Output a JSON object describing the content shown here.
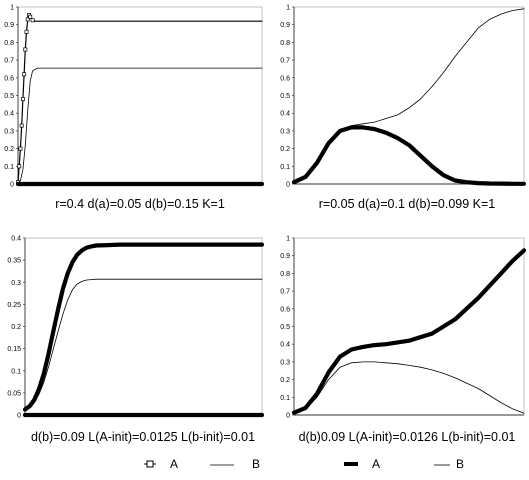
{
  "chart_data": [
    {
      "type": "line",
      "caption": "r=0.4  d(a)=0.05  d(b)=0.15  K=1",
      "xlim": [
        0,
        100
      ],
      "ylim": [
        0,
        1
      ],
      "yticks": [
        "0",
        "0.1",
        "0.2",
        "0.3",
        "0.4",
        "0.5",
        "0.6",
        "0.7",
        "0.8",
        "0.9",
        "1"
      ],
      "series": [
        {
          "style": "open-marker",
          "x": [
            0,
            0.5,
            1,
            1.5,
            2,
            2.5,
            3,
            3.5,
            4,
            4.5,
            5,
            6,
            7,
            8,
            10,
            20,
            40,
            60,
            80,
            100
          ],
          "y": [
            0.01,
            0.1,
            0.2,
            0.33,
            0.48,
            0.62,
            0.76,
            0.86,
            0.93,
            0.955,
            0.945,
            0.925,
            0.92,
            0.92,
            0.92,
            0.92,
            0.92,
            0.92,
            0.92,
            0.92
          ]
        },
        {
          "style": "thin",
          "x": [
            0,
            1,
            2,
            3,
            4,
            5,
            6,
            8,
            10,
            20,
            40,
            60,
            80,
            100
          ],
          "y": [
            0.0,
            0.02,
            0.08,
            0.22,
            0.42,
            0.58,
            0.64,
            0.655,
            0.655,
            0.655,
            0.655,
            0.655,
            0.655,
            0.655
          ]
        },
        {
          "style": "thick",
          "x": [
            0,
            5,
            100
          ],
          "y": [
            0.0,
            0.0,
            0.0
          ]
        }
      ]
    },
    {
      "type": "line",
      "caption": "r=0.05  d(a)=0.1  d(b)=0.099  K=1",
      "xlim": [
        0,
        100
      ],
      "ylim": [
        0,
        1
      ],
      "yticks": [
        "0",
        "0.1",
        "0.2",
        "0.3",
        "0.4",
        "0.5",
        "0.6",
        "0.7",
        "0.8",
        "0.9",
        "1"
      ],
      "series": [
        {
          "style": "thick",
          "x": [
            0,
            5,
            10,
            15,
            20,
            25,
            30,
            35,
            40,
            45,
            50,
            55,
            60,
            65,
            70,
            75,
            80,
            85,
            90,
            95,
            100
          ],
          "y": [
            0.01,
            0.04,
            0.12,
            0.23,
            0.3,
            0.32,
            0.32,
            0.31,
            0.29,
            0.26,
            0.22,
            0.16,
            0.1,
            0.05,
            0.02,
            0.01,
            0.005,
            0.003,
            0.002,
            0.001,
            0.001
          ]
        },
        {
          "style": "thin",
          "x": [
            0,
            5,
            10,
            15,
            20,
            25,
            30,
            35,
            40,
            45,
            50,
            55,
            60,
            65,
            70,
            75,
            80,
            85,
            90,
            95,
            100
          ],
          "y": [
            0.01,
            0.04,
            0.12,
            0.23,
            0.3,
            0.33,
            0.34,
            0.35,
            0.37,
            0.39,
            0.43,
            0.48,
            0.55,
            0.63,
            0.72,
            0.8,
            0.88,
            0.93,
            0.96,
            0.98,
            0.99
          ]
        }
      ]
    },
    {
      "type": "line",
      "caption": "d(b)=0.09  L(A-init)=0.0125  L(b-init)=0.01",
      "xlim": [
        0,
        100
      ],
      "ylim": [
        0,
        0.4
      ],
      "yticks": [
        "0",
        "0.05",
        "0.1",
        "0.15",
        "0.2",
        "0.25",
        "0.3",
        "0.35",
        "0.4"
      ],
      "series": [
        {
          "style": "thick",
          "x": [
            0,
            2,
            4,
            6,
            8,
            10,
            12,
            14,
            16,
            18,
            20,
            22,
            24,
            26,
            28,
            30,
            35,
            40,
            50,
            60,
            70,
            80,
            90,
            100
          ],
          "y": [
            0.0125,
            0.02,
            0.035,
            0.06,
            0.095,
            0.14,
            0.19,
            0.24,
            0.285,
            0.32,
            0.345,
            0.362,
            0.372,
            0.378,
            0.381,
            0.383,
            0.384,
            0.385,
            0.385,
            0.385,
            0.385,
            0.385,
            0.385,
            0.385
          ]
        },
        {
          "style": "thin",
          "x": [
            0,
            2,
            4,
            6,
            8,
            10,
            12,
            14,
            16,
            18,
            20,
            22,
            24,
            26,
            28,
            30,
            35,
            40,
            50,
            60,
            70,
            80,
            90,
            100
          ],
          "y": [
            0.01,
            0.016,
            0.028,
            0.048,
            0.075,
            0.11,
            0.15,
            0.19,
            0.228,
            0.26,
            0.283,
            0.296,
            0.302,
            0.305,
            0.306,
            0.307,
            0.307,
            0.307,
            0.307,
            0.307,
            0.307,
            0.307,
            0.307,
            0.307
          ]
        },
        {
          "style": "thick",
          "x": [
            0,
            100
          ],
          "y": [
            0.0,
            0.0
          ]
        }
      ]
    },
    {
      "type": "line",
      "caption": "d(b)0.09  L(A-init)=0.0126  L(b-init)=0.01",
      "xlim": [
        0,
        100
      ],
      "ylim": [
        0,
        1
      ],
      "yticks": [
        "0",
        "0.1",
        "0.2",
        "0.3",
        "0.4",
        "0.5",
        "0.6",
        "0.7",
        "0.8",
        "0.9",
        "1"
      ],
      "series": [
        {
          "style": "thick",
          "x": [
            0,
            5,
            10,
            15,
            20,
            25,
            30,
            35,
            40,
            45,
            50,
            55,
            60,
            65,
            70,
            75,
            80,
            85,
            90,
            95,
            100
          ],
          "y": [
            0.013,
            0.04,
            0.12,
            0.24,
            0.33,
            0.37,
            0.385,
            0.395,
            0.4,
            0.41,
            0.42,
            0.44,
            0.46,
            0.5,
            0.54,
            0.6,
            0.66,
            0.73,
            0.8,
            0.87,
            0.93
          ]
        },
        {
          "style": "thin",
          "x": [
            0,
            5,
            10,
            15,
            20,
            25,
            30,
            35,
            40,
            45,
            50,
            55,
            60,
            65,
            70,
            75,
            80,
            85,
            90,
            95,
            100
          ],
          "y": [
            0.01,
            0.035,
            0.1,
            0.2,
            0.27,
            0.295,
            0.3,
            0.3,
            0.295,
            0.29,
            0.28,
            0.27,
            0.255,
            0.235,
            0.21,
            0.18,
            0.15,
            0.11,
            0.07,
            0.035,
            0.01
          ]
        }
      ]
    }
  ],
  "legends": [
    {
      "items": [
        {
          "label": "A",
          "style": "open-marker"
        },
        {
          "label": "B",
          "style": "thin"
        }
      ]
    },
    {
      "items": [
        {
          "label": "A",
          "style": "thick"
        },
        {
          "label": "B",
          "style": "thin"
        }
      ]
    }
  ]
}
